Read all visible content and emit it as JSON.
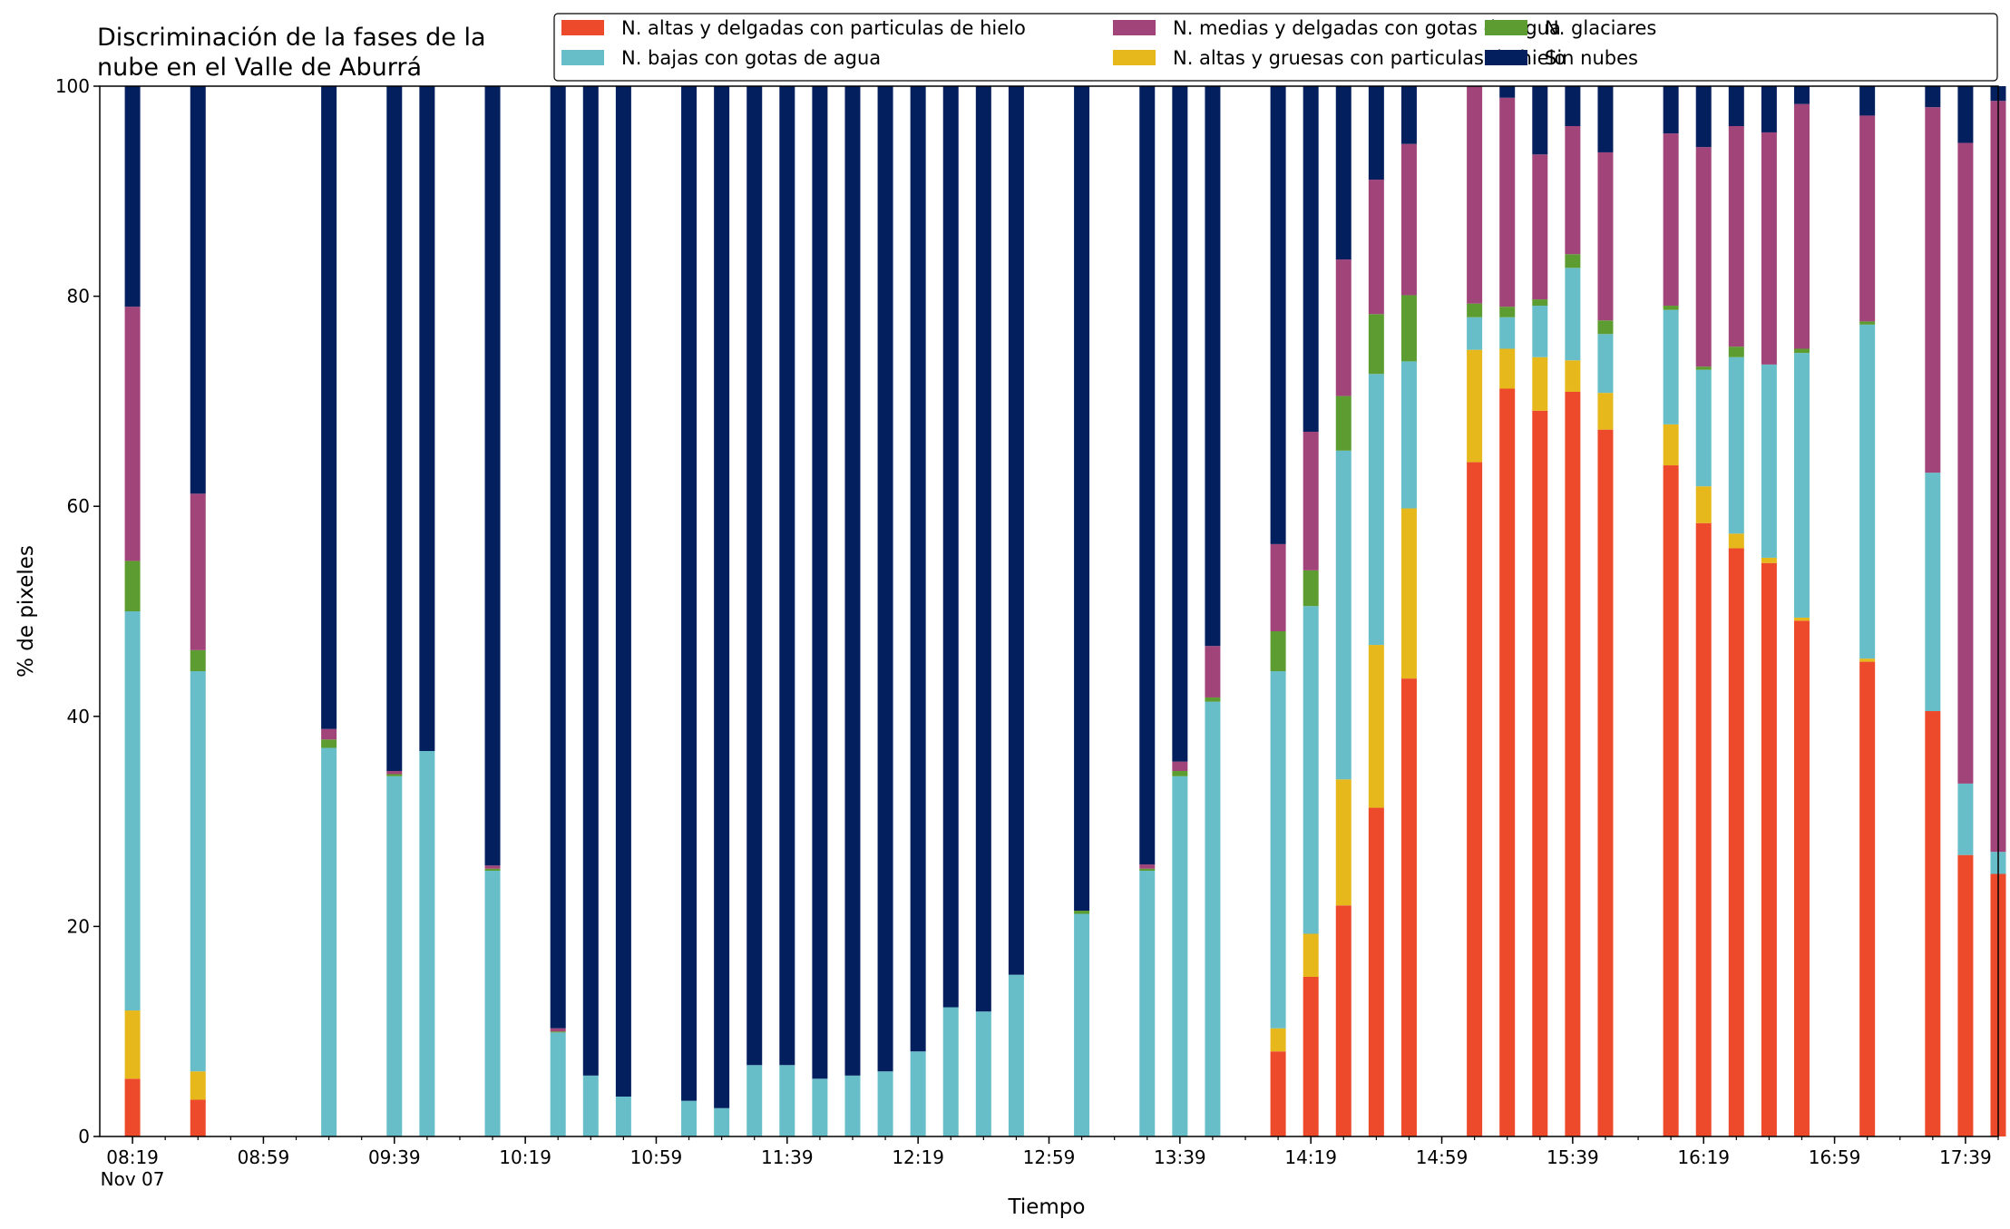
{
  "chart_data": {
    "type": "bar",
    "stacked": true,
    "title": "Discriminación de la fases de la\nnube en el Valle de Aburrá",
    "xlabel": "Tiempo",
    "ylabel": "% de pixeles",
    "ylim": [
      0,
      100
    ],
    "yticks": [
      0,
      20,
      40,
      60,
      80,
      100
    ],
    "xlim_minutes_after_0819": [
      -10,
      570
    ],
    "xticks": [
      {
        "label": "08:19",
        "sublabel": "Nov 07",
        "t": 0
      },
      {
        "label": "08:59",
        "t": 40
      },
      {
        "label": "09:39",
        "t": 80
      },
      {
        "label": "10:19",
        "t": 120
      },
      {
        "label": "10:59",
        "t": 160
      },
      {
        "label": "11:39",
        "t": 200
      },
      {
        "label": "12:19",
        "t": 240
      },
      {
        "label": "12:59",
        "t": 280
      },
      {
        "label": "13:39",
        "t": 320
      },
      {
        "label": "14:19",
        "t": 360
      },
      {
        "label": "14:59",
        "t": 400
      },
      {
        "label": "15:39",
        "t": 440
      },
      {
        "label": "16:19",
        "t": 480
      },
      {
        "label": "16:59",
        "t": 520
      },
      {
        "label": "17:39",
        "t": 560
      }
    ],
    "legend_position": "top-right, 3 columns",
    "series": [
      {
        "name": "N. altas y delgadas con particulas de hielo",
        "color": "#ed4a2c"
      },
      {
        "name": "N. altas y gruesas con particulas de hielo",
        "color": "#e6b81b"
      },
      {
        "name": "N. bajas con gotas de agua",
        "color": "#67bec9"
      },
      {
        "name": "N. glaciares",
        "color": "#5d9c31"
      },
      {
        "name": "N. medias y delgadas con gotas de agua",
        "color": "#a0447a"
      },
      {
        "name": "Sin nubes",
        "color": "#041f5e"
      }
    ],
    "legend_order": [
      0,
      2,
      4,
      1,
      3,
      5
    ],
    "bars": [
      {
        "t": 0,
        "values": [
          5.5,
          6.5,
          38,
          4.8,
          24.2,
          21
        ]
      },
      {
        "t": 20,
        "values": [
          3.5,
          2.7,
          38.1,
          2,
          14.9,
          38.8
        ]
      },
      {
        "t": 60,
        "values": [
          0,
          0,
          37,
          0.8,
          1,
          61.2
        ]
      },
      {
        "t": 80,
        "values": [
          0,
          0,
          34.3,
          0.2,
          0.3,
          65.2
        ]
      },
      {
        "t": 90,
        "values": [
          0,
          0,
          36.7,
          0,
          0,
          63.3
        ]
      },
      {
        "t": 110,
        "values": [
          0,
          0,
          25.3,
          0.2,
          0.3,
          74.2
        ]
      },
      {
        "t": 130,
        "values": [
          0,
          0,
          9.9,
          0.1,
          0.3,
          89.7
        ]
      },
      {
        "t": 140,
        "values": [
          0,
          0,
          5.8,
          0,
          0,
          94.2
        ]
      },
      {
        "t": 150,
        "values": [
          0,
          0,
          3.8,
          0,
          0,
          96.2
        ]
      },
      {
        "t": 170,
        "values": [
          0,
          0,
          3.4,
          0,
          0,
          96.6
        ]
      },
      {
        "t": 180,
        "values": [
          0,
          0,
          2.7,
          0,
          0,
          97.3
        ]
      },
      {
        "t": 190,
        "values": [
          0,
          0,
          6.8,
          0,
          0,
          93.2
        ]
      },
      {
        "t": 200,
        "values": [
          0,
          0,
          6.8,
          0,
          0,
          93.2
        ]
      },
      {
        "t": 210,
        "values": [
          0,
          0,
          5.5,
          0,
          0,
          94.5
        ]
      },
      {
        "t": 220,
        "values": [
          0,
          0,
          5.8,
          0,
          0,
          94.2
        ]
      },
      {
        "t": 230,
        "values": [
          0,
          0,
          6.2,
          0,
          0,
          93.8
        ]
      },
      {
        "t": 240,
        "values": [
          0,
          0,
          8.1,
          0,
          0,
          91.9
        ]
      },
      {
        "t": 250,
        "values": [
          0,
          0,
          12.3,
          0,
          0,
          87.7
        ]
      },
      {
        "t": 260,
        "values": [
          0,
          0,
          11.9,
          0,
          0,
          88.1
        ]
      },
      {
        "t": 270,
        "values": [
          0,
          0,
          15.4,
          0,
          0,
          84.6
        ]
      },
      {
        "t": 290,
        "values": [
          0,
          0,
          21.2,
          0.3,
          0,
          78.5
        ]
      },
      {
        "t": 310,
        "values": [
          0,
          0,
          25.3,
          0.2,
          0.4,
          74.1
        ]
      },
      {
        "t": 320,
        "values": [
          0,
          0,
          34.3,
          0.5,
          0.9,
          64.3
        ]
      },
      {
        "t": 330,
        "values": [
          0,
          0,
          41.4,
          0.4,
          4.9,
          53.3
        ]
      },
      {
        "t": 350,
        "values": [
          8.1,
          2.2,
          34,
          3.8,
          8.3,
          43.6
        ]
      },
      {
        "t": 360,
        "values": [
          15.2,
          4.1,
          31.2,
          3.4,
          13.2,
          32.9
        ]
      },
      {
        "t": 370,
        "values": [
          22,
          12,
          31.3,
          5.2,
          13,
          16.5
        ]
      },
      {
        "t": 380,
        "values": [
          31.3,
          15.5,
          25.8,
          5.7,
          12.8,
          8.9
        ]
      },
      {
        "t": 390,
        "values": [
          43.6,
          16.2,
          14,
          6.3,
          14.4,
          5.5
        ]
      },
      {
        "t": 410,
        "values": [
          64.2,
          10.7,
          3.1,
          1.3,
          20.7,
          0
        ]
      },
      {
        "t": 420,
        "values": [
          71.2,
          3.8,
          3,
          1,
          19.9,
          1.1
        ]
      },
      {
        "t": 430,
        "values": [
          69.1,
          5.1,
          4.9,
          0.6,
          13.8,
          6.5
        ]
      },
      {
        "t": 440,
        "values": [
          70.9,
          3,
          8.8,
          1.3,
          12.2,
          3.8
        ]
      },
      {
        "t": 450,
        "values": [
          67.3,
          3.5,
          5.6,
          1.3,
          16,
          6.3
        ]
      },
      {
        "t": 470,
        "values": [
          63.9,
          3.9,
          10.9,
          0.4,
          16.4,
          4.5
        ]
      },
      {
        "t": 480,
        "values": [
          58.4,
          3.5,
          11.1,
          0.3,
          20.9,
          5.8
        ]
      },
      {
        "t": 490,
        "values": [
          56,
          1.4,
          16.8,
          1,
          21,
          3.8
        ]
      },
      {
        "t": 500,
        "values": [
          54.6,
          0.5,
          18.4,
          0,
          22.1,
          4.4
        ]
      },
      {
        "t": 510,
        "values": [
          49.1,
          0.3,
          25.2,
          0.4,
          23.3,
          1.7
        ]
      },
      {
        "t": 530,
        "values": [
          45.2,
          0.3,
          31.8,
          0.3,
          19.6,
          2.8
        ]
      },
      {
        "t": 550,
        "values": [
          40.5,
          0,
          22.7,
          0,
          34.8,
          2
        ]
      },
      {
        "t": 560,
        "values": [
          26.8,
          0,
          6.8,
          0,
          61,
          5.4
        ]
      },
      {
        "t": 570,
        "values": [
          25,
          0,
          2.1,
          0,
          71.5,
          1.4
        ]
      }
    ]
  }
}
